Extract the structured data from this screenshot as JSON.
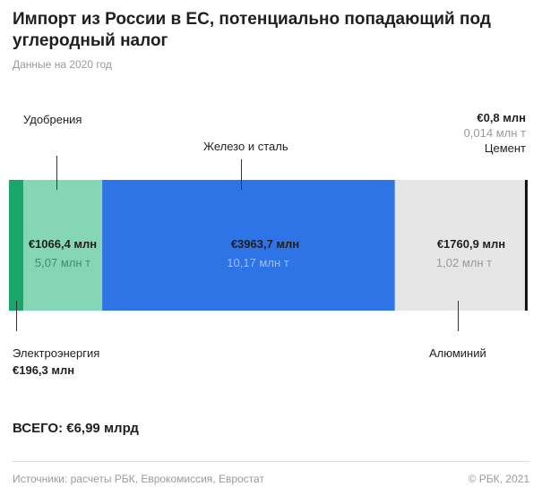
{
  "title": "Импорт из России в ЕС, потенциально попадающий под углеродный налог",
  "subtitle": "Данные на 2020 год",
  "total": "ВСЕГО: €6,99 млрд",
  "footer": {
    "sources": "Источники: расчеты РБК, Еврокомиссия, Евростат",
    "copyright": "© РБК, 2021"
  },
  "chart_data": {
    "type": "bar",
    "orientation": "horizontal-stacked",
    "unit": "€ млн",
    "segments": [
      {
        "name": "Электроэнергия",
        "value": 196.3,
        "value_label": "€196,3 млн",
        "volume_label": "",
        "color": "#1aa56a"
      },
      {
        "name": "Удобрения",
        "value": 1066.4,
        "value_label": "€1066,4 млн",
        "volume_label": "5,07 млн т",
        "color": "#84d6b4"
      },
      {
        "name": "Железо и сталь",
        "value": 3963.7,
        "value_label": "€3963,7 млн",
        "volume_label": "10,17 млн т",
        "color": "#2f74e6"
      },
      {
        "name": "Алюминий",
        "value": 1760.9,
        "value_label": "€1760,9 млн",
        "volume_label": "1,02 млн т",
        "color": "#e6e6e6"
      },
      {
        "name": "Цемент",
        "value": 0.8,
        "value_label": "€0,8 млн",
        "volume_label": "0,014 млн т",
        "color": "#111111"
      }
    ]
  }
}
